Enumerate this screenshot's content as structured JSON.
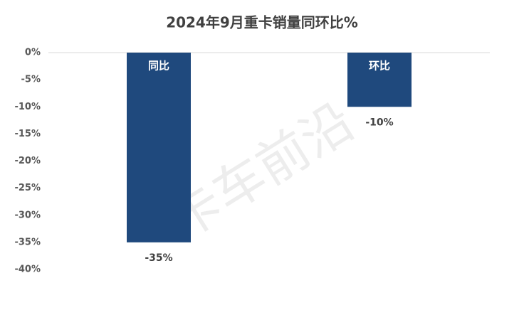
{
  "chart_data": {
    "type": "bar",
    "title": "2024年9月重卡销量同环比%",
    "categories": [
      "同比",
      "环比"
    ],
    "values": [
      -35,
      -10
    ],
    "value_labels": [
      "-35%",
      "-10%"
    ],
    "color": "#1f497d",
    "ylim": [
      -40,
      0
    ],
    "yticks": [
      {
        "value": 0,
        "label": "0%"
      },
      {
        "value": -5,
        "label": "-5%"
      },
      {
        "value": -10,
        "label": "-10%"
      },
      {
        "value": -15,
        "label": "-15%"
      },
      {
        "value": -20,
        "label": "-20%"
      },
      {
        "value": -25,
        "label": "-25%"
      },
      {
        "value": -30,
        "label": "-30%"
      },
      {
        "value": -35,
        "label": "-35%"
      },
      {
        "value": -40,
        "label": "-40%"
      }
    ],
    "grid": false,
    "watermark": "卡车前沿"
  }
}
